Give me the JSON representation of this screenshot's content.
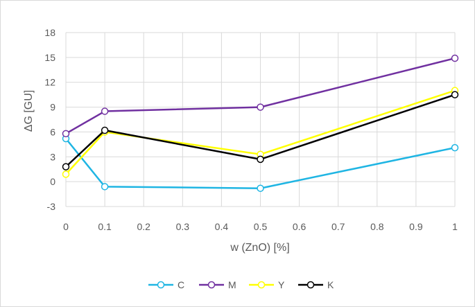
{
  "chart_data": {
    "type": "line",
    "xlabel": "w (ZnO) [%]",
    "ylabel": "ΔG [GU]",
    "xlim": [
      0,
      1
    ],
    "ylim": [
      -3,
      18
    ],
    "x_ticks": [
      "0",
      "0.1",
      "0.2",
      "0.3",
      "0.4",
      "0.5",
      "0.6",
      "0.7",
      "0.8",
      "0.9",
      "1"
    ],
    "y_ticks": [
      "-3",
      "0",
      "3",
      "6",
      "9",
      "12",
      "15",
      "18"
    ],
    "grid": true,
    "legend_position": "bottom",
    "x": [
      0,
      0.1,
      0.5,
      1
    ],
    "series": [
      {
        "name": "C",
        "color": "#1fb5e3",
        "values": [
          5.2,
          -0.6,
          -0.8,
          4.1
        ]
      },
      {
        "name": "M",
        "color": "#7030a0",
        "values": [
          5.8,
          8.5,
          9.0,
          14.9
        ]
      },
      {
        "name": "Y",
        "color": "#ffff00",
        "values": [
          0.9,
          6.0,
          3.3,
          11.0
        ]
      },
      {
        "name": "K",
        "color": "#000000",
        "values": [
          1.8,
          6.2,
          2.7,
          10.5
        ]
      }
    ]
  }
}
